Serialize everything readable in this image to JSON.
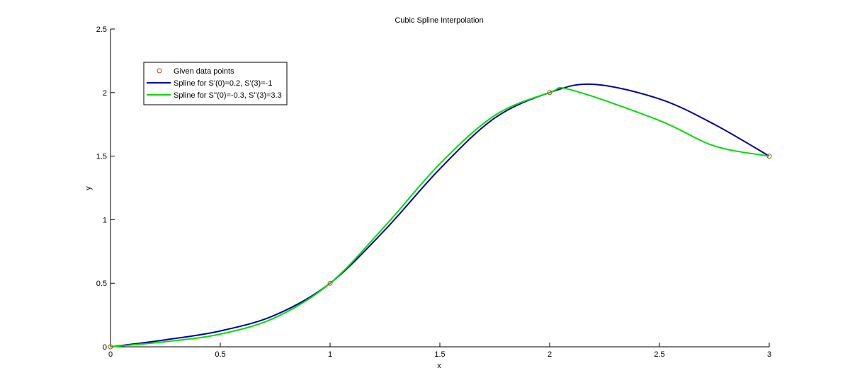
{
  "chart_data": {
    "type": "line",
    "title": "Cubic Spline Interpolation",
    "xlabel": "x",
    "ylabel": "y",
    "xlim": [
      0,
      3
    ],
    "ylim": [
      0,
      2.5
    ],
    "xticks": [
      "0",
      "0.5",
      "1",
      "1.5",
      "2",
      "2.5",
      "3"
    ],
    "yticks": [
      "0",
      "0.5",
      "1",
      "1.5",
      "2",
      "2.5"
    ],
    "grid": false,
    "legend_position": "top-left",
    "data_points": {
      "name": "Given data points",
      "marker": "circle",
      "color": "#b5452a",
      "x": [
        0,
        1,
        2,
        3
      ],
      "y": [
        0,
        0.5,
        2,
        1.5
      ]
    },
    "series": [
      {
        "name": "Spline for S'(0)=0.2, S'(3)=-1",
        "color": "#0000a8",
        "x": [
          0,
          0.25,
          0.5,
          0.75,
          1,
          1.25,
          1.5,
          1.75,
          2,
          2.2,
          2.5,
          2.75,
          3
        ],
        "y": [
          0,
          0.055,
          0.125,
          0.25,
          0.5,
          0.92,
          1.4,
          1.8,
          2,
          2.065,
          1.95,
          1.75,
          1.5
        ]
      },
      {
        "name": "Spline for S''(0)=-0.3, S''(3)=3.3",
        "color": "#00dd00",
        "x": [
          0,
          0.25,
          0.5,
          0.75,
          1,
          1.25,
          1.5,
          1.75,
          2,
          2.1,
          2.5,
          2.75,
          3
        ],
        "y": [
          0,
          0.04,
          0.1,
          0.23,
          0.5,
          0.95,
          1.44,
          1.82,
          2,
          2.02,
          1.78,
          1.58,
          1.5
        ]
      }
    ]
  }
}
